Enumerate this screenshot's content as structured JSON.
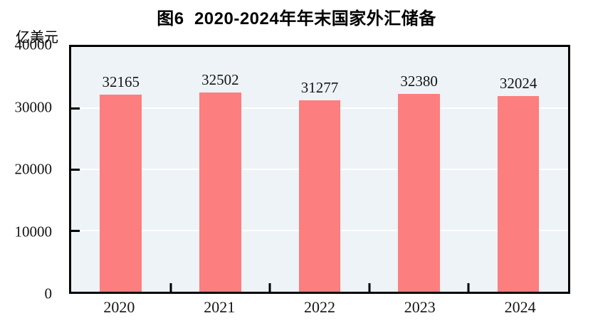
{
  "figure": {
    "title": "图6  2020-2024年年末国家外汇储备",
    "unit_label": "亿美元"
  },
  "chart_data": {
    "type": "bar",
    "title": "图6  2020-2024年年末国家外汇储备",
    "categories": [
      "2020",
      "2021",
      "2022",
      "2023",
      "2024"
    ],
    "values": [
      32165,
      32502,
      31277,
      32380,
      32024
    ],
    "xlabel": "",
    "ylabel": "亿美元",
    "ylim": [
      0,
      40000
    ],
    "yticks": [
      0,
      10000,
      20000,
      30000,
      40000
    ],
    "gridline_values": [
      10000,
      20000,
      30000
    ],
    "grid": "horizontal",
    "legend": "none",
    "data_labels": true,
    "colors": {
      "bar": "#fc7e7e",
      "plot_bg": "#edf3f6",
      "gridline": "#ffffff",
      "axis": "#000000",
      "text": "#141414"
    }
  }
}
